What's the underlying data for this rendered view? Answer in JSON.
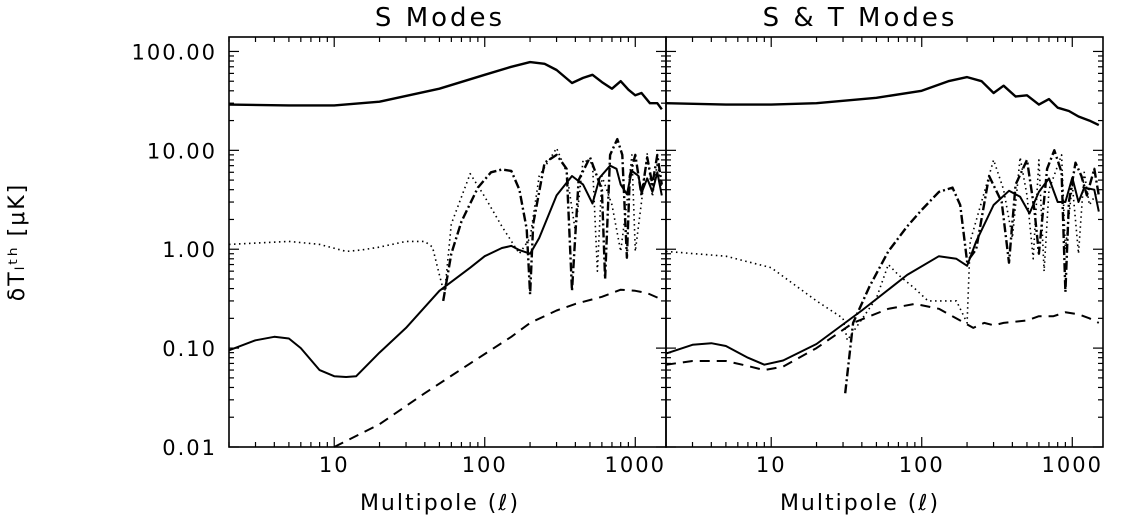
{
  "chart_data": [
    {
      "type": "line",
      "title": "S Modes",
      "xlabel": "Multipole (ℓ)",
      "ylabel": "δTₗᵗʰ [μK]",
      "xscale": "log",
      "yscale": "log",
      "xlim": [
        2,
        1600
      ],
      "ylim": [
        0.01,
        140
      ],
      "xticks": [
        "10",
        "100",
        "1000"
      ],
      "yticks": [
        "0.01",
        "0.10",
        "1.00",
        "10.00",
        "100.00"
      ],
      "series": [
        {
          "style": "solid-thick-top",
          "points": [
            [
              2,
              29
            ],
            [
              5,
              28.5
            ],
            [
              10,
              28.5
            ],
            [
              20,
              31
            ],
            [
              50,
              42
            ],
            [
              100,
              58
            ],
            [
              150,
              70
            ],
            [
              200,
              78
            ],
            [
              250,
              75
            ],
            [
              300,
              65
            ],
            [
              380,
              48
            ],
            [
              450,
              54
            ],
            [
              520,
              58
            ],
            [
              600,
              49
            ],
            [
              700,
              42
            ],
            [
              800,
              50
            ],
            [
              900,
              41
            ],
            [
              1000,
              36
            ],
            [
              1100,
              38
            ],
            [
              1250,
              30
            ],
            [
              1400,
              30
            ],
            [
              1500,
              26
            ]
          ]
        },
        {
          "style": "solid",
          "points": [
            [
              2,
              0.095
            ],
            [
              3,
              0.12
            ],
            [
              4,
              0.13
            ],
            [
              5,
              0.125
            ],
            [
              6,
              0.1
            ],
            [
              8,
              0.06
            ],
            [
              10,
              0.052
            ],
            [
              12,
              0.051
            ],
            [
              14,
              0.052
            ],
            [
              20,
              0.09
            ],
            [
              30,
              0.16
            ],
            [
              50,
              0.38
            ],
            [
              80,
              0.65
            ],
            [
              100,
              0.85
            ],
            [
              130,
              1.03
            ],
            [
              150,
              1.08
            ],
            [
              170,
              0.98
            ],
            [
              200,
              0.9
            ],
            [
              230,
              1.3
            ],
            [
              300,
              3.5
            ],
            [
              380,
              5.5
            ],
            [
              450,
              4.5
            ],
            [
              520,
              2.9
            ],
            [
              580,
              5.3
            ],
            [
              680,
              7.0
            ],
            [
              750,
              6.5
            ],
            [
              800,
              4.5
            ],
            [
              880,
              3.6
            ],
            [
              950,
              6.2
            ],
            [
              1050,
              5.5
            ],
            [
              1100,
              3.7
            ],
            [
              1200,
              5.2
            ],
            [
              1300,
              3.8
            ],
            [
              1400,
              6.0
            ],
            [
              1500,
              3.5
            ]
          ]
        },
        {
          "style": "dotted",
          "points": [
            [
              2,
              1.12
            ],
            [
              5,
              1.2
            ],
            [
              8,
              1.12
            ],
            [
              12,
              0.95
            ],
            [
              15,
              0.98
            ],
            [
              20,
              1.05
            ],
            [
              30,
              1.2
            ],
            [
              40,
              1.2
            ],
            [
              45,
              1.05
            ],
            [
              50,
              0.55
            ],
            [
              54,
              0.35
            ],
            [
              60,
              1.8
            ],
            [
              80,
              5.8
            ],
            [
              100,
              3.4
            ],
            [
              130,
              1.7
            ],
            [
              170,
              0.9
            ],
            [
              200,
              1.3
            ],
            [
              230,
              5.5
            ],
            [
              300,
              10.5
            ],
            [
              350,
              6.0
            ],
            [
              400,
              1.5
            ],
            [
              450,
              8.0
            ],
            [
              520,
              7.4
            ],
            [
              560,
              0.6
            ],
            [
              600,
              5.5
            ],
            [
              700,
              2.8
            ],
            [
              800,
              0.95
            ],
            [
              880,
              3.0
            ],
            [
              950,
              9.0
            ],
            [
              1000,
              0.95
            ],
            [
              1100,
              3.0
            ],
            [
              1200,
              9.2
            ],
            [
              1300,
              3.4
            ],
            [
              1400,
              7.5
            ],
            [
              1500,
              4.0
            ]
          ]
        },
        {
          "style": "dash-dot",
          "points": [
            [
              53,
              0.3
            ],
            [
              60,
              0.9
            ],
            [
              70,
              1.9
            ],
            [
              90,
              4.2
            ],
            [
              110,
              6.0
            ],
            [
              130,
              6.4
            ],
            [
              150,
              6.2
            ],
            [
              170,
              4.0
            ],
            [
              190,
              1.6
            ],
            [
              200,
              0.35
            ],
            [
              210,
              1.8
            ],
            [
              250,
              7.5
            ],
            [
              300,
              9.0
            ],
            [
              350,
              6.5
            ],
            [
              380,
              0.38
            ],
            [
              420,
              5.0
            ],
            [
              500,
              8.5
            ],
            [
              600,
              4.0
            ],
            [
              630,
              0.5
            ],
            [
              680,
              9.0
            ],
            [
              760,
              13.0
            ],
            [
              820,
              9.0
            ],
            [
              880,
              0.82
            ],
            [
              920,
              5.5
            ],
            [
              1000,
              9.0
            ],
            [
              1100,
              3.5
            ],
            [
              1200,
              8.5
            ],
            [
              1300,
              4.5
            ],
            [
              1400,
              9.0
            ],
            [
              1500,
              4.5
            ]
          ]
        },
        {
          "style": "dashed",
          "points": [
            [
              10,
              0.01
            ],
            [
              20,
              0.017
            ],
            [
              40,
              0.035
            ],
            [
              80,
              0.07
            ],
            [
              150,
              0.13
            ],
            [
              200,
              0.18
            ],
            [
              300,
              0.24
            ],
            [
              400,
              0.28
            ],
            [
              600,
              0.33
            ],
            [
              800,
              0.39
            ],
            [
              1000,
              0.38
            ],
            [
              1200,
              0.36
            ],
            [
              1500,
              0.31
            ]
          ]
        }
      ]
    },
    {
      "type": "line",
      "title": "S & T Modes",
      "xlabel": "Multipole (ℓ)",
      "xscale": "log",
      "yscale": "log",
      "xlim": [
        2,
        1600
      ],
      "ylim": [
        0.01,
        140
      ],
      "xticks": [
        "10",
        "100",
        "1000"
      ],
      "series": [
        {
          "style": "solid-thick-top",
          "points": [
            [
              2,
              30
            ],
            [
              5,
              29
            ],
            [
              10,
              29
            ],
            [
              20,
              30
            ],
            [
              50,
              34
            ],
            [
              100,
              40
            ],
            [
              150,
              50
            ],
            [
              200,
              55
            ],
            [
              250,
              50
            ],
            [
              300,
              38
            ],
            [
              350,
              45
            ],
            [
              420,
              35
            ],
            [
              500,
              36
            ],
            [
              600,
              29
            ],
            [
              700,
              33
            ],
            [
              800,
              27
            ],
            [
              950,
              25
            ],
            [
              1100,
              22
            ],
            [
              1300,
              20
            ],
            [
              1500,
              18
            ]
          ]
        },
        {
          "style": "solid",
          "points": [
            [
              2,
              0.088
            ],
            [
              3,
              0.108
            ],
            [
              4,
              0.112
            ],
            [
              5,
              0.105
            ],
            [
              7,
              0.08
            ],
            [
              9,
              0.068
            ],
            [
              12,
              0.075
            ],
            [
              20,
              0.11
            ],
            [
              40,
              0.24
            ],
            [
              80,
              0.55
            ],
            [
              130,
              0.85
            ],
            [
              170,
              0.8
            ],
            [
              200,
              0.68
            ],
            [
              230,
              1.2
            ],
            [
              300,
              2.8
            ],
            [
              380,
              3.9
            ],
            [
              450,
              3.4
            ],
            [
              520,
              2.3
            ],
            [
              600,
              3.8
            ],
            [
              700,
              5.2
            ],
            [
              800,
              3.0
            ],
            [
              900,
              3.0
            ],
            [
              1000,
              5.3
            ],
            [
              1100,
              3.0
            ],
            [
              1200,
              4.2
            ],
            [
              1400,
              4.0
            ],
            [
              1500,
              2.4
            ]
          ]
        },
        {
          "style": "dotted",
          "points": [
            [
              2,
              0.95
            ],
            [
              5,
              0.85
            ],
            [
              10,
              0.65
            ],
            [
              20,
              0.3
            ],
            [
              30,
              0.2
            ],
            [
              32,
              0.12
            ],
            [
              50,
              0.32
            ],
            [
              60,
              0.7
            ],
            [
              70,
              0.55
            ],
            [
              90,
              0.4
            ],
            [
              110,
              0.3
            ],
            [
              170,
              0.3
            ],
            [
              200,
              0.18
            ],
            [
              210,
              1.2
            ],
            [
              300,
              8.0
            ],
            [
              350,
              4.0
            ],
            [
              400,
              1.3
            ],
            [
              450,
              8.5
            ],
            [
              500,
              3.5
            ],
            [
              550,
              0.8
            ],
            [
              600,
              8.0
            ],
            [
              650,
              0.6
            ],
            [
              700,
              4.0
            ],
            [
              850,
              9.0
            ],
            [
              900,
              1.0
            ],
            [
              1000,
              4.5
            ],
            [
              1100,
              0.9
            ],
            [
              1200,
              6.0
            ],
            [
              1300,
              2.8
            ],
            [
              1500,
              4.0
            ]
          ]
        },
        {
          "style": "dash-dot",
          "points": [
            [
              31,
              0.035
            ],
            [
              35,
              0.18
            ],
            [
              45,
              0.42
            ],
            [
              60,
              0.95
            ],
            [
              80,
              1.7
            ],
            [
              100,
              2.5
            ],
            [
              130,
              3.8
            ],
            [
              160,
              4.2
            ],
            [
              180,
              2.8
            ],
            [
              200,
              0.75
            ],
            [
              230,
              1.0
            ],
            [
              280,
              5.5
            ],
            [
              340,
              3.0
            ],
            [
              380,
              0.73
            ],
            [
              420,
              4.5
            ],
            [
              500,
              8.0
            ],
            [
              560,
              2.5
            ],
            [
              600,
              0.9
            ],
            [
              680,
              6.5
            ],
            [
              760,
              10.0
            ],
            [
              850,
              6.0
            ],
            [
              900,
              0.37
            ],
            [
              950,
              3.0
            ],
            [
              1050,
              7.5
            ],
            [
              1150,
              5.5
            ],
            [
              1250,
              3.5
            ],
            [
              1400,
              6.5
            ],
            [
              1500,
              3.5
            ]
          ]
        },
        {
          "style": "dashed",
          "points": [
            [
              2,
              0.068
            ],
            [
              3,
              0.074
            ],
            [
              5,
              0.074
            ],
            [
              7,
              0.066
            ],
            [
              9,
              0.06
            ],
            [
              12,
              0.065
            ],
            [
              20,
              0.1
            ],
            [
              35,
              0.18
            ],
            [
              60,
              0.25
            ],
            [
              90,
              0.28
            ],
            [
              130,
              0.25
            ],
            [
              180,
              0.19
            ],
            [
              220,
              0.16
            ],
            [
              260,
              0.18
            ],
            [
              300,
              0.17
            ],
            [
              350,
              0.18
            ],
            [
              500,
              0.19
            ],
            [
              600,
              0.21
            ],
            [
              750,
              0.21
            ],
            [
              900,
              0.23
            ],
            [
              1100,
              0.22
            ],
            [
              1300,
              0.2
            ],
            [
              1500,
              0.18
            ]
          ]
        }
      ]
    }
  ]
}
